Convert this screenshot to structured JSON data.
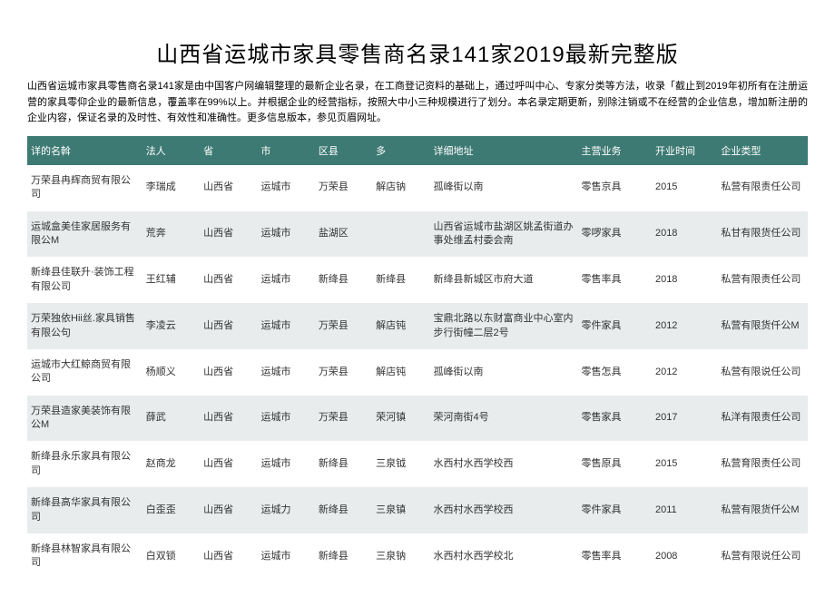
{
  "title": "山西省运城市家具零售商名录141家2019最新完整版",
  "description": "山西省运城市家具零售商名录141家是由中国客户网编辑整理的最新企业名录，在工商登记资料的基础上，通过呼叫中心、专家分类等方法，收录「截止到2019年初所有在注册运营的家具零仰企业的最新信息，覆盖率在99%以上。并根据企业的经营指标，按照大中小三种规模进行了划分。本名录定期更新，别除注销或不在经营的企业信息，增加新注册的企业内容，保证名录的及时性、有效性和准确性。更多信息版本，参见页眉网址。",
  "columns": [
    "详的名斡",
    "法人",
    "省",
    "市",
    "区县",
    "多",
    "详细地址",
    "主营业务",
    "开业时间",
    "企业类型"
  ],
  "header_bg": "#3d7a73",
  "header_color": "#ffffff",
  "row_odd_bg": "#ffffff",
  "row_even_bg": "#e8eced",
  "rows": [
    {
      "name": "万荣县冉辉商贸有限公司",
      "legal": "李瑞成",
      "province": "山西省",
      "city": "运城市",
      "district": "万荣县",
      "town": "解店钠",
      "address": "孤峰街以南",
      "business": "零售京具",
      "year": "2015",
      "type": "私营有限责任公司"
    },
    {
      "name": "运城盒美佳家居服务有限公M",
      "legal": "荒奔",
      "province": "山西省",
      "city": "运城市",
      "district": "盐湖区",
      "town": "",
      "address": "山西省运城市盐湖区姚孟街道办事处维孟村委会南",
      "business": "零啰家具",
      "year": "2018",
      "type": "私甘有限货任公司"
    },
    {
      "name": "新绛县佳联升·装饰工程有限公司",
      "legal": "王红辅",
      "province": "山西省",
      "city": "运城市",
      "district": "新绛县",
      "town": "新绛县",
      "address": "新绛县新城区市府大道",
      "business": "零售率具",
      "year": "2018",
      "type": "私营有限责任公司"
    },
    {
      "name": "万荣独依Hii丝.家具销售有限公句",
      "legal": "李凌云",
      "province": "山西省",
      "city": "运城市",
      "district": "万荣县",
      "town": "解店钝",
      "address": "宝鼎北路以东财富商业中心室内步行街幢二层2号",
      "business": "零件家具",
      "year": "2012",
      "type": "私营有限货仟公M"
    },
    {
      "name": "运城市大红鲸商贸有限公司",
      "legal": "杨顺义",
      "province": "山西省",
      "city": "运城市",
      "district": "万荣县",
      "town": "解店钝",
      "address": "孤峰街以南",
      "business": "零售怎具",
      "year": "2012",
      "type": "私营有限说任公司"
    },
    {
      "name": "万荣县造家美装饰有限公M",
      "legal": "薛武",
      "province": "山西省",
      "city": "运城市",
      "district": "万荣县",
      "town": "荣河镇",
      "address": "荣河南街4号",
      "business": "零售家具",
      "year": "2017",
      "type": "私洋有限责任公司"
    },
    {
      "name": "新绛县永乐家具有限公司",
      "legal": "赵商龙",
      "province": "山西省",
      "city": "运城市",
      "district": "新绛县",
      "town": "三泉钺",
      "address": "水西村水西学校西",
      "business": "零售原具",
      "year": "2015",
      "type": "私营育限责任公司"
    },
    {
      "name": "新绛县高华家具有限公司",
      "legal": "白歪歪",
      "province": "山西省",
      "city": "运城力",
      "district": "新绛县",
      "town": "三泉镇",
      "address": "水西村水西学校西",
      "business": "零件家具",
      "year": "2011",
      "type": "私营有限货仟公M"
    },
    {
      "name": "新绛县林智家具有限公司",
      "legal": "白双锁",
      "province": "山西省",
      "city": "运城市",
      "district": "新绛县",
      "town": "三泉钠",
      "address": "水西村水西学校北",
      "business": "零售率具",
      "year": "2008",
      "type": "私营有限说任公司"
    }
  ]
}
